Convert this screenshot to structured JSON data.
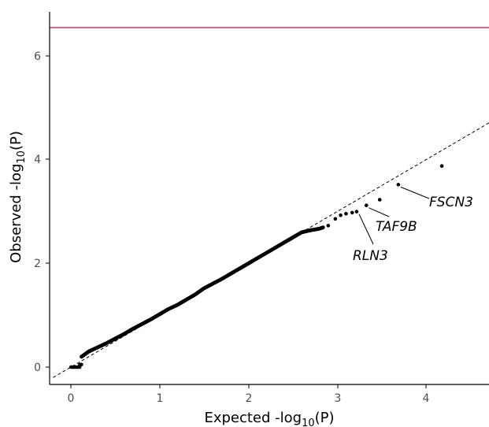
{
  "chart_data": {
    "type": "scatter",
    "title": "",
    "xlabel": {
      "prefix": "Expected -log",
      "sub": "10",
      "suffix": "(P)"
    },
    "ylabel": {
      "prefix": "Observed -log",
      "sub": "10",
      "suffix": "(P)"
    },
    "xlim": [
      -0.2,
      4.72
    ],
    "ylim": [
      -0.28,
      6.85
    ],
    "x_ticks": [
      0,
      1,
      2,
      3,
      4
    ],
    "y_ticks": [
      0,
      2,
      4,
      6
    ],
    "grid": false,
    "significance_threshold": 6.55,
    "colors": {
      "threshold": "#c0143c",
      "points": "#000000",
      "axis": "#000000",
      "diagonal": "#000000"
    },
    "main_series": {
      "segments": [
        {
          "x_start": 0.0,
          "x_end": 0.1,
          "y": 0.0
        },
        {
          "x_start": 0.1,
          "x_end": 0.12,
          "y": 0.05
        }
      ],
      "bulk_x": [
        0.12,
        0.2,
        0.3,
        0.4,
        0.5,
        0.6,
        0.7,
        0.8,
        0.9,
        1.0,
        1.1,
        1.2,
        1.3,
        1.4,
        1.5,
        1.6,
        1.7,
        1.8,
        1.9,
        2.0,
        2.1,
        2.2,
        2.3,
        2.4,
        2.5,
        2.55,
        2.6,
        2.7,
        2.8,
        2.85
      ],
      "bulk_y": [
        0.2,
        0.3,
        0.38,
        0.46,
        0.55,
        0.64,
        0.74,
        0.83,
        0.92,
        1.02,
        1.12,
        1.2,
        1.3,
        1.4,
        1.52,
        1.61,
        1.7,
        1.8,
        1.9,
        2.0,
        2.1,
        2.2,
        2.3,
        2.4,
        2.5,
        2.55,
        2.6,
        2.64,
        2.67,
        2.7
      ]
    },
    "tail_points": [
      {
        "x": 2.9,
        "y": 2.73
      },
      {
        "x": 2.98,
        "y": 2.86
      },
      {
        "x": 3.04,
        "y": 2.93
      },
      {
        "x": 3.1,
        "y": 2.96
      },
      {
        "x": 3.17,
        "y": 2.98
      },
      {
        "x": 3.22,
        "y": 3.0,
        "label": "RLN3"
      },
      {
        "x": 3.33,
        "y": 3.12,
        "label": "TAF9B"
      },
      {
        "x": 3.48,
        "y": 3.23
      },
      {
        "x": 3.69,
        "y": 3.52,
        "label": "FSCN3"
      },
      {
        "x": 4.18,
        "y": 3.88
      }
    ],
    "annotations": [
      {
        "text": "RLN3"
      },
      {
        "text": "TAF9B"
      },
      {
        "text": "FSCN3"
      }
    ]
  }
}
